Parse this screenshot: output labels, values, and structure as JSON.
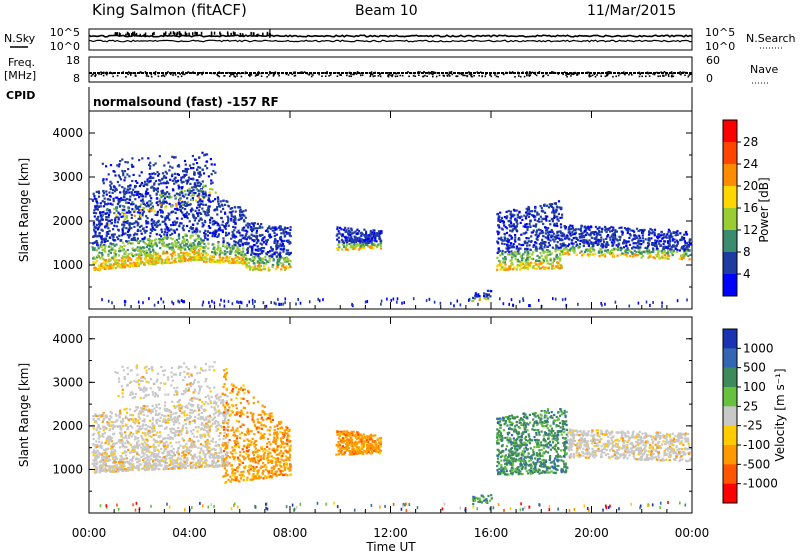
{
  "header": {
    "station": "King Salmon (fitACF)",
    "beam": "Beam 10",
    "date": "11/Mar/2015"
  },
  "left_labels": {
    "nsky": "N.Sky",
    "freq": "Freq.",
    "mhz": "[MHz]",
    "cpid": "CPID"
  },
  "right_labels": {
    "nsearch": "N.Search",
    "nave": "Nave"
  },
  "mode_text": "normalsound (fast) -157 RF",
  "chart_data": [
    {
      "type": "line",
      "name": "noise",
      "y_left_ticks": [
        "10^5",
        "10^0"
      ],
      "y_right_ticks": [
        "10^5",
        "10^0"
      ]
    },
    {
      "type": "scatter",
      "name": "freq-nave",
      "y_left_ticks": [
        "18",
        "8"
      ],
      "y_right_ticks": [
        "60",
        "0"
      ]
    },
    {
      "type": "heatmap",
      "name": "power",
      "ylabel": "Slant Range [km]",
      "ylim": [
        0,
        4500
      ],
      "y_ticks": [
        1000,
        2000,
        3000,
        4000
      ],
      "xlim": [
        0,
        24
      ],
      "colorbar": {
        "label": "Power [dB]",
        "ticks": [
          "4",
          "8",
          "12",
          "16",
          "20",
          "24",
          "28"
        ],
        "colors": [
          "#0000ff",
          "#1e3ca0",
          "#3a8c6e",
          "#9acd32",
          "#ffd700",
          "#ff8c00",
          "#ff4500",
          "#ff0000"
        ]
      }
    },
    {
      "type": "heatmap",
      "name": "velocity",
      "ylabel": "Slant Range [km]",
      "ylim": [
        0,
        4500
      ],
      "y_ticks": [
        1000,
        2000,
        3000,
        4000
      ],
      "xlim": [
        0,
        24
      ],
      "xlabel": "Time UT",
      "x_ticks": [
        "00:00",
        "04:00",
        "08:00",
        "12:00",
        "16:00",
        "20:00",
        "00:00"
      ],
      "colorbar": {
        "label": "Velocity [m s⁻¹]",
        "ticks": [
          "1000",
          "500",
          "100",
          "25",
          "-25",
          "-100",
          "-500",
          "-1000"
        ],
        "colors": [
          "#1a33b3",
          "#3366b3",
          "#3d8b5a",
          "#66c23d",
          "#c8c8c8",
          "#ffcc00",
          "#ff9900",
          "#ff5500",
          "#ff0000"
        ]
      }
    }
  ]
}
